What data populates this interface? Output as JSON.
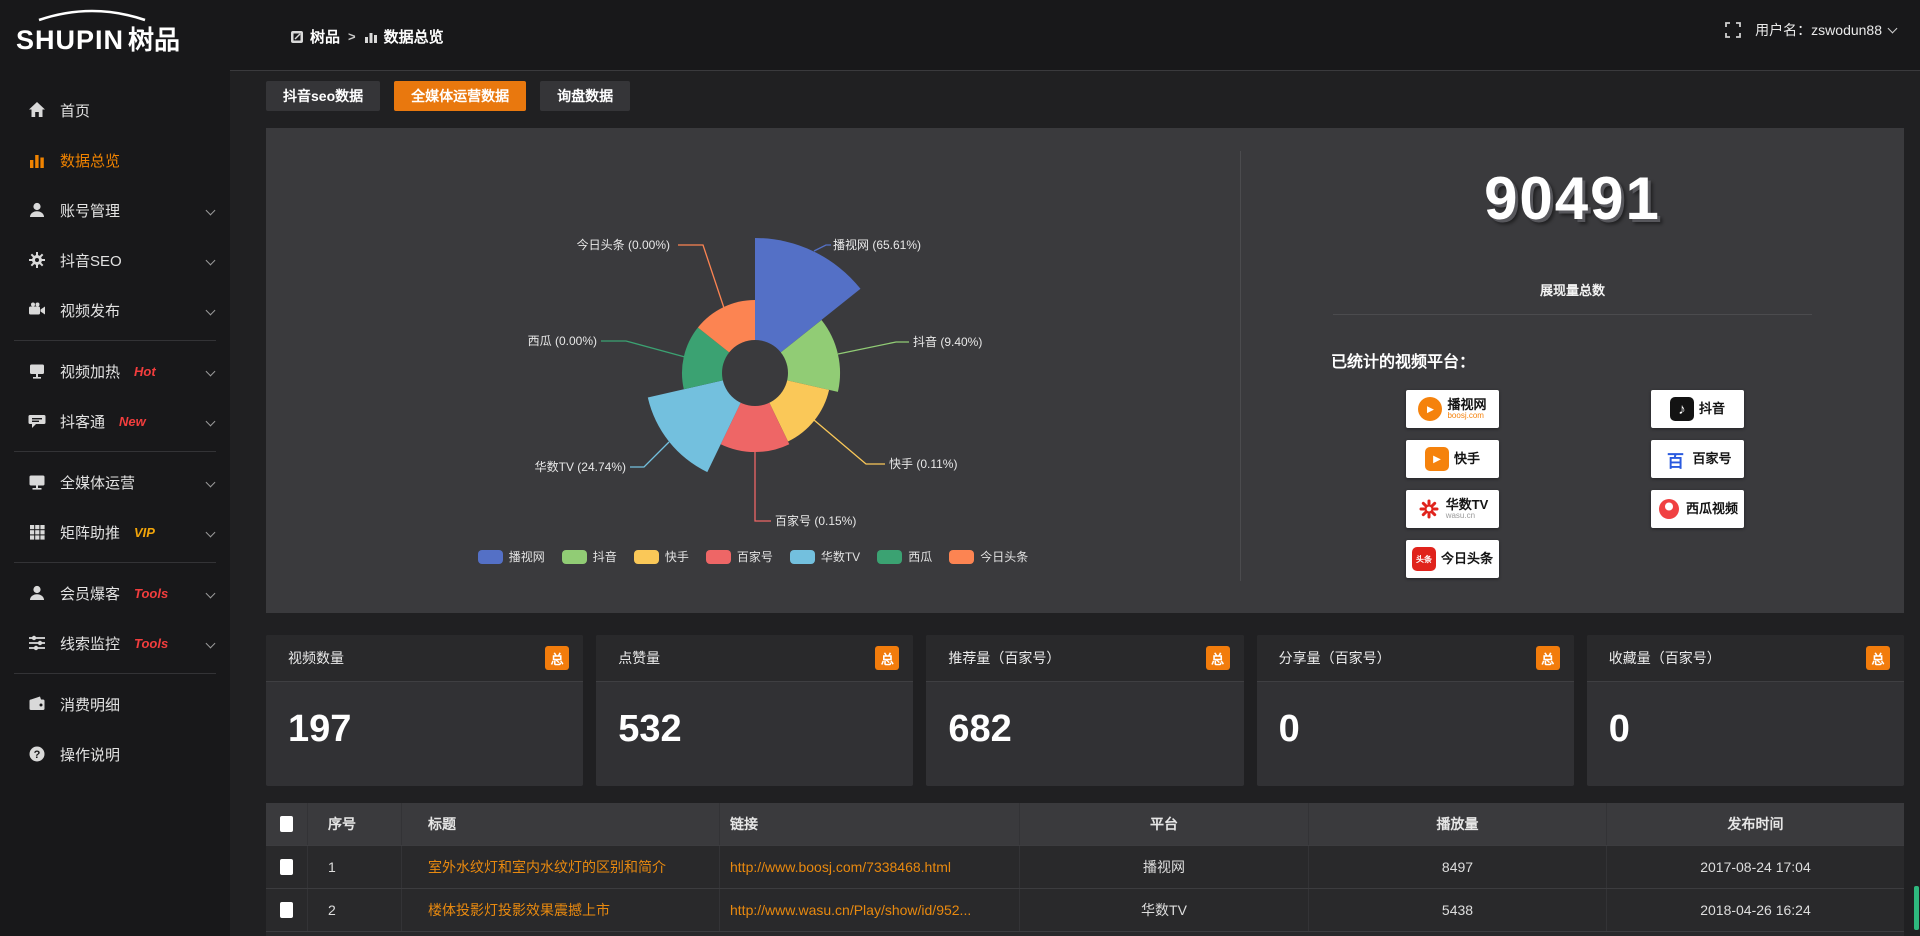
{
  "header": {
    "logo_en": "SHUPIN",
    "logo_cn": "树品",
    "breadcrumb": {
      "root": "树品",
      "separator": ">",
      "current": "数据总览"
    },
    "username": "用户名：zswodun88"
  },
  "sidebar": {
    "items": [
      {
        "label": "首页",
        "icon": "home"
      },
      {
        "label": "数据总览",
        "icon": "chart",
        "active": true
      },
      {
        "label": "账号管理",
        "icon": "user",
        "chevron": true
      },
      {
        "label": "抖音SEO",
        "icon": "gear",
        "chevron": true
      },
      {
        "label": "视频发布",
        "icon": "video",
        "chevron": true
      },
      {
        "label": "视频加热",
        "icon": "screen",
        "chevron": true,
        "badge": "Hot",
        "badge_color": "#f23d3d",
        "divider_before": true
      },
      {
        "label": "抖客通",
        "icon": "chat",
        "chevron": true,
        "badge": "New",
        "badge_color": "#f23d3d"
      },
      {
        "label": "全媒体运营",
        "icon": "monitor",
        "chevron": true,
        "divider_before": true
      },
      {
        "label": "矩阵助推",
        "icon": "grid",
        "chevron": true,
        "badge": "VIP",
        "badge_color": "#f2a50a"
      },
      {
        "label": "会员爆客",
        "icon": "person",
        "chevron": true,
        "badge": "Tools",
        "badge_color": "#f23d3d",
        "divider_before": true
      },
      {
        "label": "线索监控",
        "icon": "sliders",
        "chevron": true,
        "badge": "Tools",
        "badge_color": "#f23d3d"
      },
      {
        "label": "消费明细",
        "icon": "wallet",
        "divider_before": true
      },
      {
        "label": "操作说明",
        "icon": "question"
      }
    ]
  },
  "tabs": [
    {
      "label": "抖音seo数据",
      "active": false
    },
    {
      "label": "全媒体运营数据",
      "active": true
    },
    {
      "label": "询盘数据",
      "active": false
    }
  ],
  "chart_data": {
    "type": "pie",
    "style": "nightingale-rose",
    "legend_position": "bottom",
    "items": [
      {
        "name": "播视网",
        "pct": "65.61",
        "value": 65.61,
        "color": "#5470c6"
      },
      {
        "name": "抖音",
        "pct": "9.40",
        "value": 9.4,
        "color": "#91cc75"
      },
      {
        "name": "快手",
        "pct": "0.11",
        "value": 0.11,
        "color": "#fac858"
      },
      {
        "name": "百家号",
        "pct": "0.15",
        "value": 0.15,
        "color": "#ee6666"
      },
      {
        "name": "华数TV",
        "pct": "24.74",
        "value": 24.74,
        "color": "#73c0de"
      },
      {
        "name": "西瓜",
        "pct": "0.00",
        "value": 0,
        "color": "#3ba272"
      },
      {
        "name": "今日头条",
        "pct": "0.00",
        "value": 0,
        "color": "#fc8452"
      }
    ]
  },
  "overview": {
    "total": "90491",
    "total_label": "展现量总数",
    "platforms_label": "已统计的视频平台：",
    "platforms": [
      {
        "name": "播视网",
        "sub": "boosj.com",
        "icon": "boosj"
      },
      {
        "name": "抖音",
        "sub": "",
        "icon": "douyin"
      },
      {
        "name": "快手",
        "sub": "",
        "icon": "kuaishou"
      },
      {
        "name": "百家号",
        "sub": "",
        "icon": "baijia"
      },
      {
        "name": "华数TV",
        "sub": "wasu.cn",
        "icon": "wasu"
      },
      {
        "name": "西瓜视频",
        "sub": "",
        "icon": "xigua"
      },
      {
        "name": "今日头条",
        "sub": "",
        "icon": "toutiao"
      }
    ]
  },
  "stat_cards": [
    {
      "title": "视频数量",
      "badge": "总",
      "value": "197"
    },
    {
      "title": "点赞量",
      "badge": "总",
      "value": "532"
    },
    {
      "title": "推荐量（百家号）",
      "badge": "总",
      "value": "682"
    },
    {
      "title": "分享量（百家号）",
      "badge": "总",
      "value": "0"
    },
    {
      "title": "收藏量（百家号）",
      "badge": "总",
      "value": "0"
    }
  ],
  "table": {
    "headers": [
      "序号",
      "标题",
      "链接",
      "平台",
      "播放量",
      "发布时间"
    ],
    "rows": [
      {
        "index": "1",
        "title": "室外水纹灯和室内水纹灯的区别和简介",
        "link": "http://www.boosj.com/7338468.html",
        "platform": "播视网",
        "plays": "8497",
        "time": "2017-08-24 17:04"
      },
      {
        "index": "2",
        "title": "楼体投影灯投影效果震撼上市",
        "link": "http://www.wasu.cn/Play/show/id/952...",
        "platform": "华数TV",
        "plays": "5438",
        "time": "2018-04-26 16:24"
      }
    ]
  }
}
